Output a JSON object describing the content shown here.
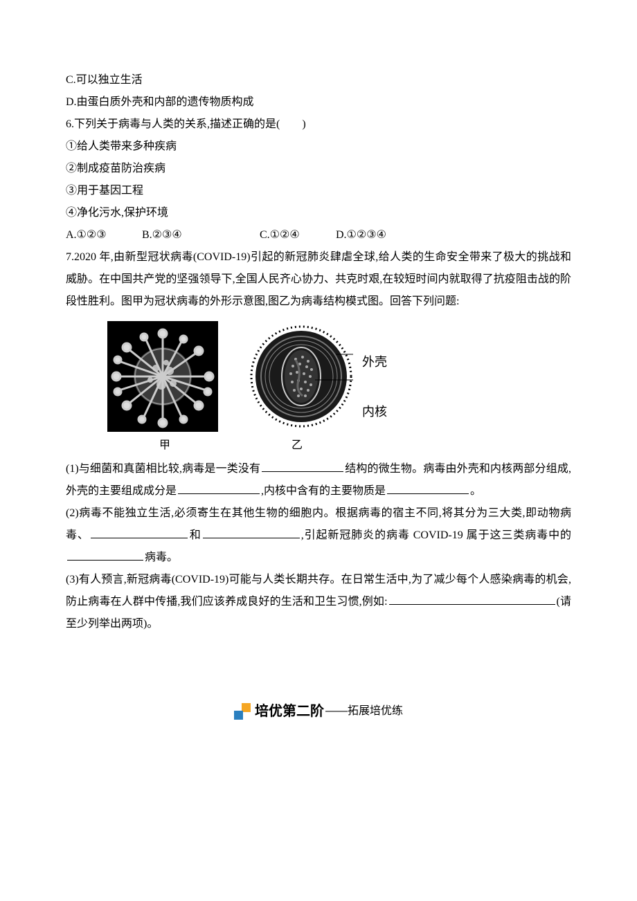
{
  "q5_optC": "C.可以独立生活",
  "q5_optD": "D.由蛋白质外壳和内部的遗传物质构成",
  "q6": {
    "stem": "6.下列关于病毒与人类的关系,描述正确的是(　　)",
    "s1": "①给人类带来多种疾病",
    "s2": "②制成疫苗防治疾病",
    "s3": "③用于基因工程",
    "s4": "④净化污水,保护环境",
    "optA": "A.①②③",
    "optB": "B.②③④",
    "optC": "C.①②④",
    "optD": "D.①②③④"
  },
  "q7": {
    "stem": "7.2020 年,由新型冠状病毒(COVID-19)引起的新冠肺炎肆虐全球,给人类的生命安全带来了极大的挑战和威胁。在中国共产党的坚强领导下,全国人民齐心协力、共克时艰,在较短时间内就取得了抗疫阻击战的阶段性胜利。图甲为冠状病毒的外形示意图,图乙为病毒结构模式图。回答下列问题:",
    "figLabel1": "外壳",
    "figLabel2": "内核",
    "capJia": "甲",
    "capYi": "乙",
    "p1a": "(1)与细菌和真菌相比较,病毒是一类没有",
    "p1b": "结构的微生物。病毒由外壳和内核两部分组成,外壳的主要组成成分是",
    "p1c": ",内核中含有的主要物质是",
    "p1d": "。",
    "p2a": "(2)病毒不能独立生活,必须寄生在其他生物的细胞内。根据病毒的宿主不同,将其分为三大类,即动物病毒、",
    "p2b": "和",
    "p2c": ",引起新冠肺炎的病毒 COVID-19 属于这三类病毒中的",
    "p2d": "病毒。",
    "p3a": "(3)有人预言,新冠病毒(COVID-19)可能与人类长期共存。在日常生活中,为了减少每个人感染病毒的机会,防止病毒在人群中传播,我们应该养成良好的生活和卫生习惯,例如:",
    "p3b": "(请至少列举出两项)。"
  },
  "banner": {
    "main": "培优第二阶",
    "sub": "——拓展培优练"
  },
  "style": {
    "blankWidths": {
      "w1": 118,
      "w2": 118,
      "w3": 118,
      "w4": 140,
      "w5": 140,
      "w6": 110,
      "w7": 240
    },
    "colors": {
      "bannerOrange": "#f5a623",
      "bannerBlue": "#2a7fbf",
      "text": "#000000",
      "bg": "#ffffff"
    }
  }
}
